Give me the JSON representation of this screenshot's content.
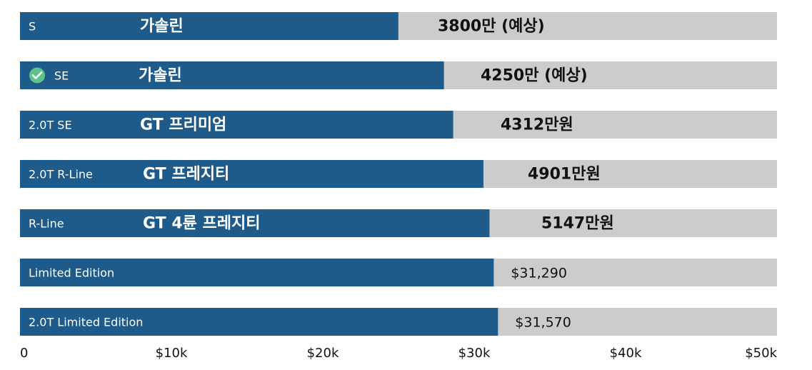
{
  "chart_data": {
    "type": "bar",
    "orientation": "horizontal",
    "xlim": [
      0,
      50000
    ],
    "grid": false,
    "legend": "none",
    "colors": {
      "bar": "#1e5b8a",
      "track": "#cccccc",
      "check": "#5cc48a"
    },
    "x_tick_labels": [
      "0",
      "$10k",
      "$20k",
      "$30k",
      "$40k",
      "$50k"
    ],
    "x_tick_values": [
      0,
      10000,
      20000,
      30000,
      40000,
      50000
    ],
    "bars": [
      {
        "label": "S",
        "value": 24990,
        "overlay": "가솔린",
        "value_label": "3800만 (예상)",
        "icon": ""
      },
      {
        "label": "SE",
        "value": 28000,
        "overlay": "가솔린",
        "value_label": "4250만 (예상)",
        "icon": "check-circle-icon"
      },
      {
        "label": "2.0T SE",
        "value": 28610,
        "overlay": "GT 프리미엄",
        "value_label": "4312만원",
        "icon": ""
      },
      {
        "label": "2.0T R-Line",
        "value": 30610,
        "overlay": "GT 프레지티",
        "value_label": "4901만원",
        "icon": ""
      },
      {
        "label": "R-Line",
        "value": 31010,
        "overlay": "GT 4륜 프레지티",
        "value_label": "5147만원",
        "icon": ""
      },
      {
        "label": "Limited Edition",
        "value": 31290,
        "overlay": "",
        "value_label": "$31,290",
        "icon": ""
      },
      {
        "label": "2.0T Limited Edition",
        "value": 31570,
        "overlay": "",
        "value_label": "$31,570",
        "icon": ""
      }
    ]
  }
}
